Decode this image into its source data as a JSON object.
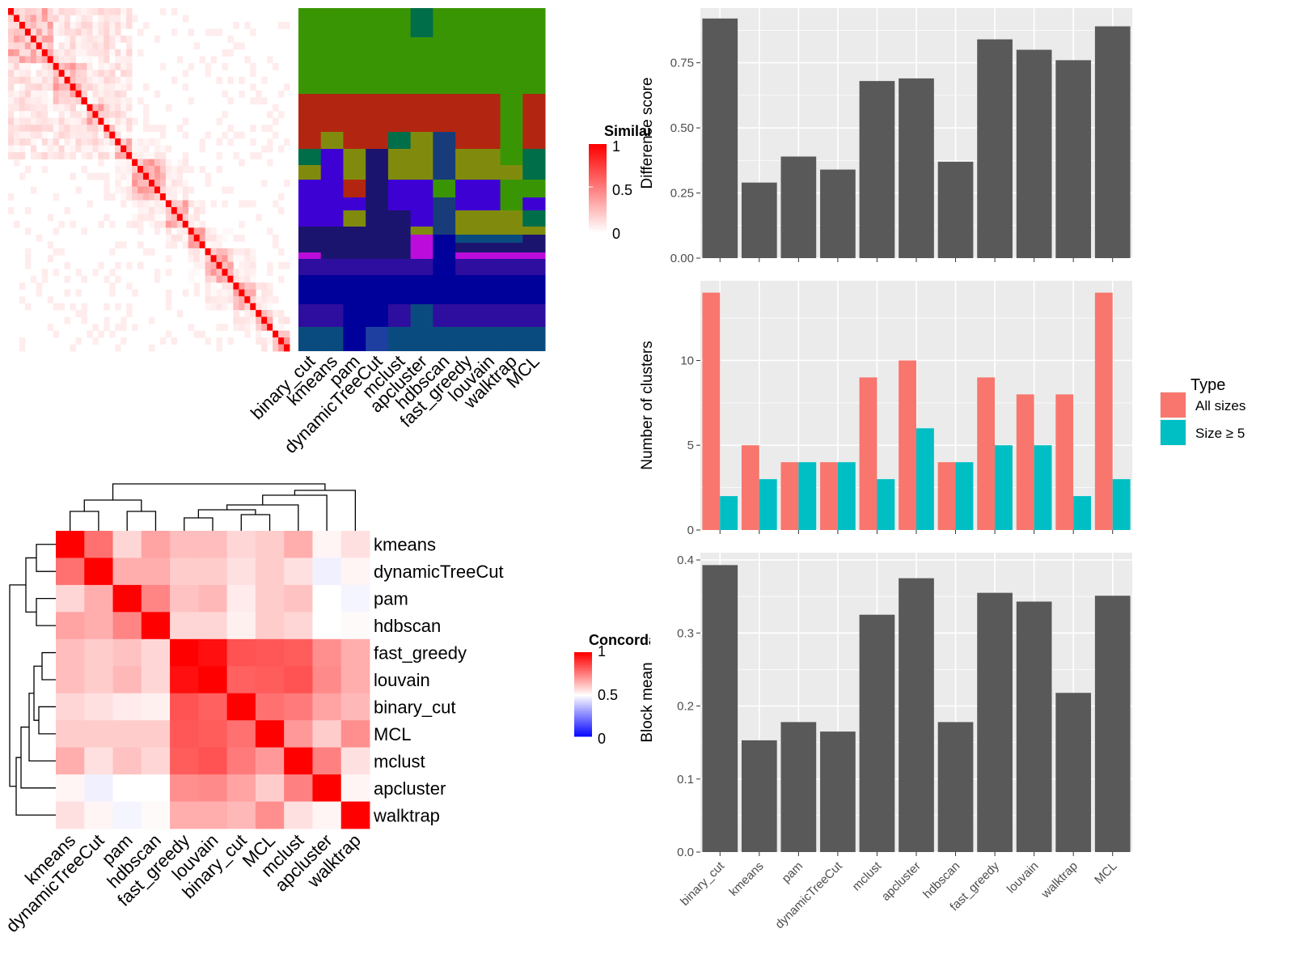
{
  "colors": {
    "red": "#ff0000",
    "white": "#ffffff",
    "blue": "#0000ff",
    "salmon": "#f8766d",
    "teal": "#00bfc4",
    "bar": "#595959",
    "panel": "#ebebeb",
    "grid": "#ffffff"
  },
  "chart_data": [
    {
      "type": "heatmap",
      "description_key": "similarity-matrix",
      "legend_title": "Similarity",
      "legend_ticks": [
        "1",
        "0.5",
        "0"
      ],
      "n": 50
    },
    {
      "type": "heatmap",
      "description_key": "cluster-label-matrix",
      "columns": [
        "binary_cut",
        "kmeans",
        "pam",
        "dynamicTreeCut",
        "mclust",
        "apcluster",
        "hdbscan",
        "fast_greedy",
        "louvain",
        "walktrap",
        "MCL"
      ],
      "cluster_colors": [
        "#3a9504",
        "#b22611",
        "#006e48",
        "#808b0e",
        "#3e01d3",
        "#1b146e",
        "#173c79",
        "#bb0cdb",
        "#0a4b7f",
        "#2e0e9e",
        "#00009a",
        "#1f3fa0"
      ]
    },
    {
      "type": "heatmap",
      "description_key": "concordance-matrix",
      "legend_title": "Concordance",
      "legend_ticks": [
        "1",
        "0.5",
        "0"
      ],
      "labels": [
        "kmeans",
        "dynamicTreeCut",
        "pam",
        "hdbscan",
        "fast_greedy",
        "louvain",
        "binary_cut",
        "MCL",
        "mclust",
        "apcluster",
        "walktrap"
      ],
      "values": [
        [
          1.0,
          0.78,
          0.58,
          0.68,
          0.63,
          0.63,
          0.58,
          0.6,
          0.66,
          0.52,
          0.56
        ],
        [
          0.78,
          1.0,
          0.66,
          0.66,
          0.6,
          0.6,
          0.56,
          0.6,
          0.56,
          0.47,
          0.52
        ],
        [
          0.58,
          0.66,
          1.0,
          0.74,
          0.62,
          0.64,
          0.54,
          0.6,
          0.62,
          0.5,
          0.48
        ],
        [
          0.68,
          0.66,
          0.74,
          1.0,
          0.58,
          0.58,
          0.53,
          0.6,
          0.58,
          0.5,
          0.51
        ],
        [
          0.63,
          0.6,
          0.62,
          0.58,
          1.0,
          0.97,
          0.84,
          0.83,
          0.82,
          0.72,
          0.66
        ],
        [
          0.63,
          0.6,
          0.64,
          0.58,
          0.97,
          1.0,
          0.81,
          0.82,
          0.84,
          0.73,
          0.66
        ],
        [
          0.58,
          0.56,
          0.54,
          0.53,
          0.84,
          0.81,
          1.0,
          0.78,
          0.76,
          0.68,
          0.64
        ],
        [
          0.6,
          0.6,
          0.6,
          0.6,
          0.83,
          0.82,
          0.78,
          1.0,
          0.7,
          0.6,
          0.72
        ],
        [
          0.66,
          0.56,
          0.62,
          0.58,
          0.82,
          0.84,
          0.76,
          0.7,
          1.0,
          0.75,
          0.56
        ],
        [
          0.52,
          0.47,
          0.5,
          0.5,
          0.72,
          0.73,
          0.68,
          0.6,
          0.75,
          1.0,
          0.52
        ],
        [
          0.56,
          0.52,
          0.48,
          0.51,
          0.66,
          0.66,
          0.64,
          0.72,
          0.56,
          0.52,
          1.0
        ]
      ]
    },
    {
      "type": "bar",
      "categories": [
        "binary_cut",
        "kmeans",
        "pam",
        "dynamicTreeCut",
        "mclust",
        "apcluster",
        "hdbscan",
        "fast_greedy",
        "louvain",
        "walktrap",
        "MCL"
      ],
      "values": [
        0.92,
        0.29,
        0.39,
        0.34,
        0.68,
        0.69,
        0.37,
        0.84,
        0.8,
        0.76,
        0.89
      ],
      "ylabel": "Difference score",
      "ylim": [
        0,
        0.96
      ],
      "yticks": [
        "0.00",
        "0.25",
        "0.50",
        "0.75"
      ]
    },
    {
      "type": "bar",
      "categories": [
        "binary_cut",
        "kmeans",
        "pam",
        "dynamicTreeCut",
        "mclust",
        "apcluster",
        "hdbscan",
        "fast_greedy",
        "louvain",
        "walktrap",
        "MCL"
      ],
      "series": [
        {
          "name": "All sizes",
          "values": [
            14,
            5,
            4,
            4,
            9,
            10,
            4,
            9,
            8,
            8,
            14
          ]
        },
        {
          "name": "Size ≥ 5",
          "values": [
            2,
            3,
            4,
            4,
            3,
            6,
            4,
            5,
            5,
            2,
            3
          ]
        }
      ],
      "ylabel": "Number of clusters",
      "ylim": [
        0,
        14.7
      ],
      "yticks": [
        "0",
        "5",
        "10"
      ],
      "legend_title": "Type"
    },
    {
      "type": "bar",
      "categories": [
        "binary_cut",
        "kmeans",
        "pam",
        "dynamicTreeCut",
        "mclust",
        "apcluster",
        "hdbscan",
        "fast_greedy",
        "louvain",
        "walktrap",
        "MCL"
      ],
      "values": [
        0.393,
        0.153,
        0.178,
        0.165,
        0.325,
        0.375,
        0.178,
        0.355,
        0.343,
        0.218,
        0.351
      ],
      "ylabel": "Block mean",
      "ylim": [
        0,
        0.41
      ],
      "yticks": [
        "0.0",
        "0.1",
        "0.2",
        "0.3",
        "0.4"
      ]
    }
  ]
}
